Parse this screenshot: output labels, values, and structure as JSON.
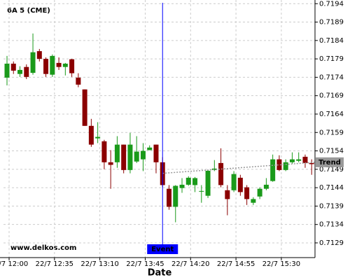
{
  "chart_data": {
    "type": "candlestick",
    "title": "6A 5 (CME)",
    "watermark": "www.delkos.com",
    "x_label": "Date",
    "categories": [
      "22/7 12:00",
      null,
      null,
      null,
      null,
      null,
      null,
      "22/7 12:35",
      null,
      null,
      null,
      null,
      null,
      null,
      "22/7 13:10",
      null,
      null,
      null,
      null,
      null,
      null,
      "22/7 13:45",
      null,
      null,
      null,
      null,
      null,
      null,
      "22/7 14:20",
      null,
      null,
      null,
      null,
      null,
      null,
      "22/7 14:55",
      null,
      null,
      null,
      null,
      null,
      null,
      "22/7 15:30",
      null,
      null,
      null,
      null,
      null
    ],
    "open": [
      0.71739,
      0.71777,
      0.71749,
      0.71768,
      0.71752,
      0.71811,
      0.7179,
      0.71747,
      0.71779,
      0.71768,
      0.71789,
      0.71739,
      0.71707,
      0.71608,
      0.71574,
      0.71566,
      0.71509,
      0.71509,
      0.71557,
      0.71488,
      0.71511,
      0.71517,
      0.71542,
      0.71557,
      0.71509,
      0.71437,
      0.71388,
      0.71439,
      0.71448,
      0.71447,
      0.71429,
      0.71418,
      0.71488,
      0.71507,
      0.71433,
      0.71433,
      0.71467,
      0.71441,
      0.71399,
      0.71416,
      0.71437,
      0.71458,
      0.71517,
      0.71488,
      0.71509,
      0.71513,
      0.71524,
      0.71507
    ],
    "high": [
      0.71798,
      0.71783,
      0.7177,
      0.71775,
      0.71859,
      0.71817,
      0.71794,
      0.71802,
      0.71794,
      0.71779,
      0.7179,
      0.71751,
      0.71707,
      0.71627,
      0.71618,
      0.7157,
      0.71542,
      0.7158,
      0.71557,
      0.71589,
      0.7158,
      0.71561,
      0.71555,
      0.71557,
      0.71523,
      0.71447,
      0.71447,
      0.71466,
      0.71471,
      0.71469,
      0.71447,
      0.71488,
      0.71515,
      0.71547,
      0.71447,
      0.71485,
      0.71475,
      0.71447,
      0.71414,
      0.71441,
      0.71466,
      0.7153,
      0.71528,
      0.71517,
      0.71536,
      0.71536,
      0.7153,
      0.71517
    ],
    "low": [
      0.71718,
      0.71749,
      0.71741,
      0.71735,
      0.71747,
      0.71783,
      0.71741,
      0.71741,
      0.7176,
      0.71745,
      0.71741,
      0.71713,
      0.71608,
      0.71551,
      0.71561,
      0.7149,
      0.71437,
      0.71494,
      0.71479,
      0.71479,
      0.71507,
      0.71485,
      0.71542,
      0.71479,
      0.71441,
      0.7138,
      0.71346,
      0.71426,
      0.71445,
      0.71428,
      0.71399,
      0.71412,
      0.71485,
      0.71441,
      0.71365,
      0.71428,
      0.71418,
      0.71393,
      0.71393,
      0.71409,
      0.71433,
      0.71456,
      0.71485,
      0.71485,
      0.71505,
      0.71509,
      0.71494,
      0.71475
    ],
    "close": [
      0.71777,
      0.71758,
      0.7176,
      0.71741,
      0.71808,
      0.7179,
      0.71749,
      0.71798,
      0.71768,
      0.71777,
      0.71751,
      0.7172,
      0.71608,
      0.71557,
      0.71578,
      0.71509,
      0.71502,
      0.71557,
      0.71488,
      0.71557,
      0.71538,
      0.7154,
      0.71549,
      0.71509,
      0.71447,
      0.71388,
      0.71445,
      0.71448,
      0.71467,
      0.71466,
      0.71431,
      0.71486,
      0.71492,
      0.71447,
      0.71409,
      0.71477,
      0.71428,
      0.71409,
      0.71409,
      0.71437,
      0.71448,
      0.71517,
      0.71488,
      0.71509,
      0.71517,
      0.71517,
      0.71507,
      0.71504
    ],
    "up_color": "#1a9a1a",
    "down_color": "#8b0000",
    "ylim": [
      0.7125,
      0.7195
    ],
    "yticks": [
      0.7194,
      0.7189,
      0.7184,
      0.7179,
      0.7174,
      0.7169,
      0.7164,
      0.7159,
      0.7154,
      0.7149,
      0.7144,
      0.7139,
      0.7134,
      0.7129
    ],
    "grid": true,
    "trend": {
      "label": "Trend",
      "values": [
        0.71479,
        0.71509
      ],
      "color": "#999999"
    },
    "event": {
      "label": "Event",
      "color": "#0000ff"
    }
  }
}
